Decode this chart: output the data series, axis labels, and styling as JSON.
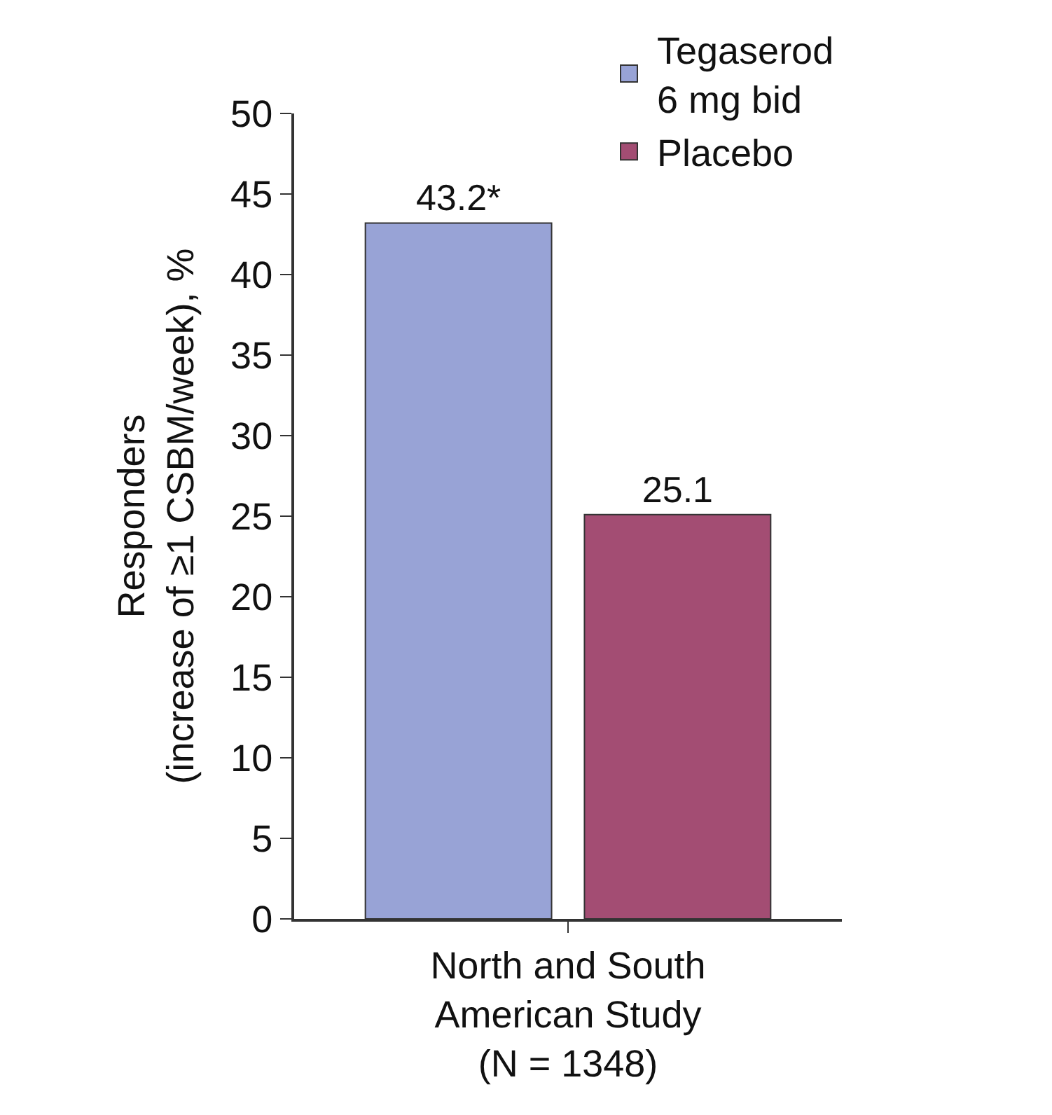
{
  "chart_data": {
    "type": "bar",
    "categories": [
      "North and South\nAmerican Study\n(N = 1348)"
    ],
    "ylabel": "Responders\n(increase of ≥1 CSBM/week), %",
    "ylim": [
      0,
      50
    ],
    "yticks": [
      0,
      5,
      10,
      15,
      20,
      25,
      30,
      35,
      40,
      45,
      50
    ],
    "legend": "top right",
    "series": [
      {
        "name": "Tegaserod\n6 mg bid",
        "color": "#98a3d6",
        "values": [
          43.2
        ],
        "value_labels": [
          "43.2*"
        ]
      },
      {
        "name": "Placebo",
        "color": "#a34d73",
        "values": [
          25.1
        ],
        "value_labels": [
          "25.1"
        ]
      }
    ]
  }
}
